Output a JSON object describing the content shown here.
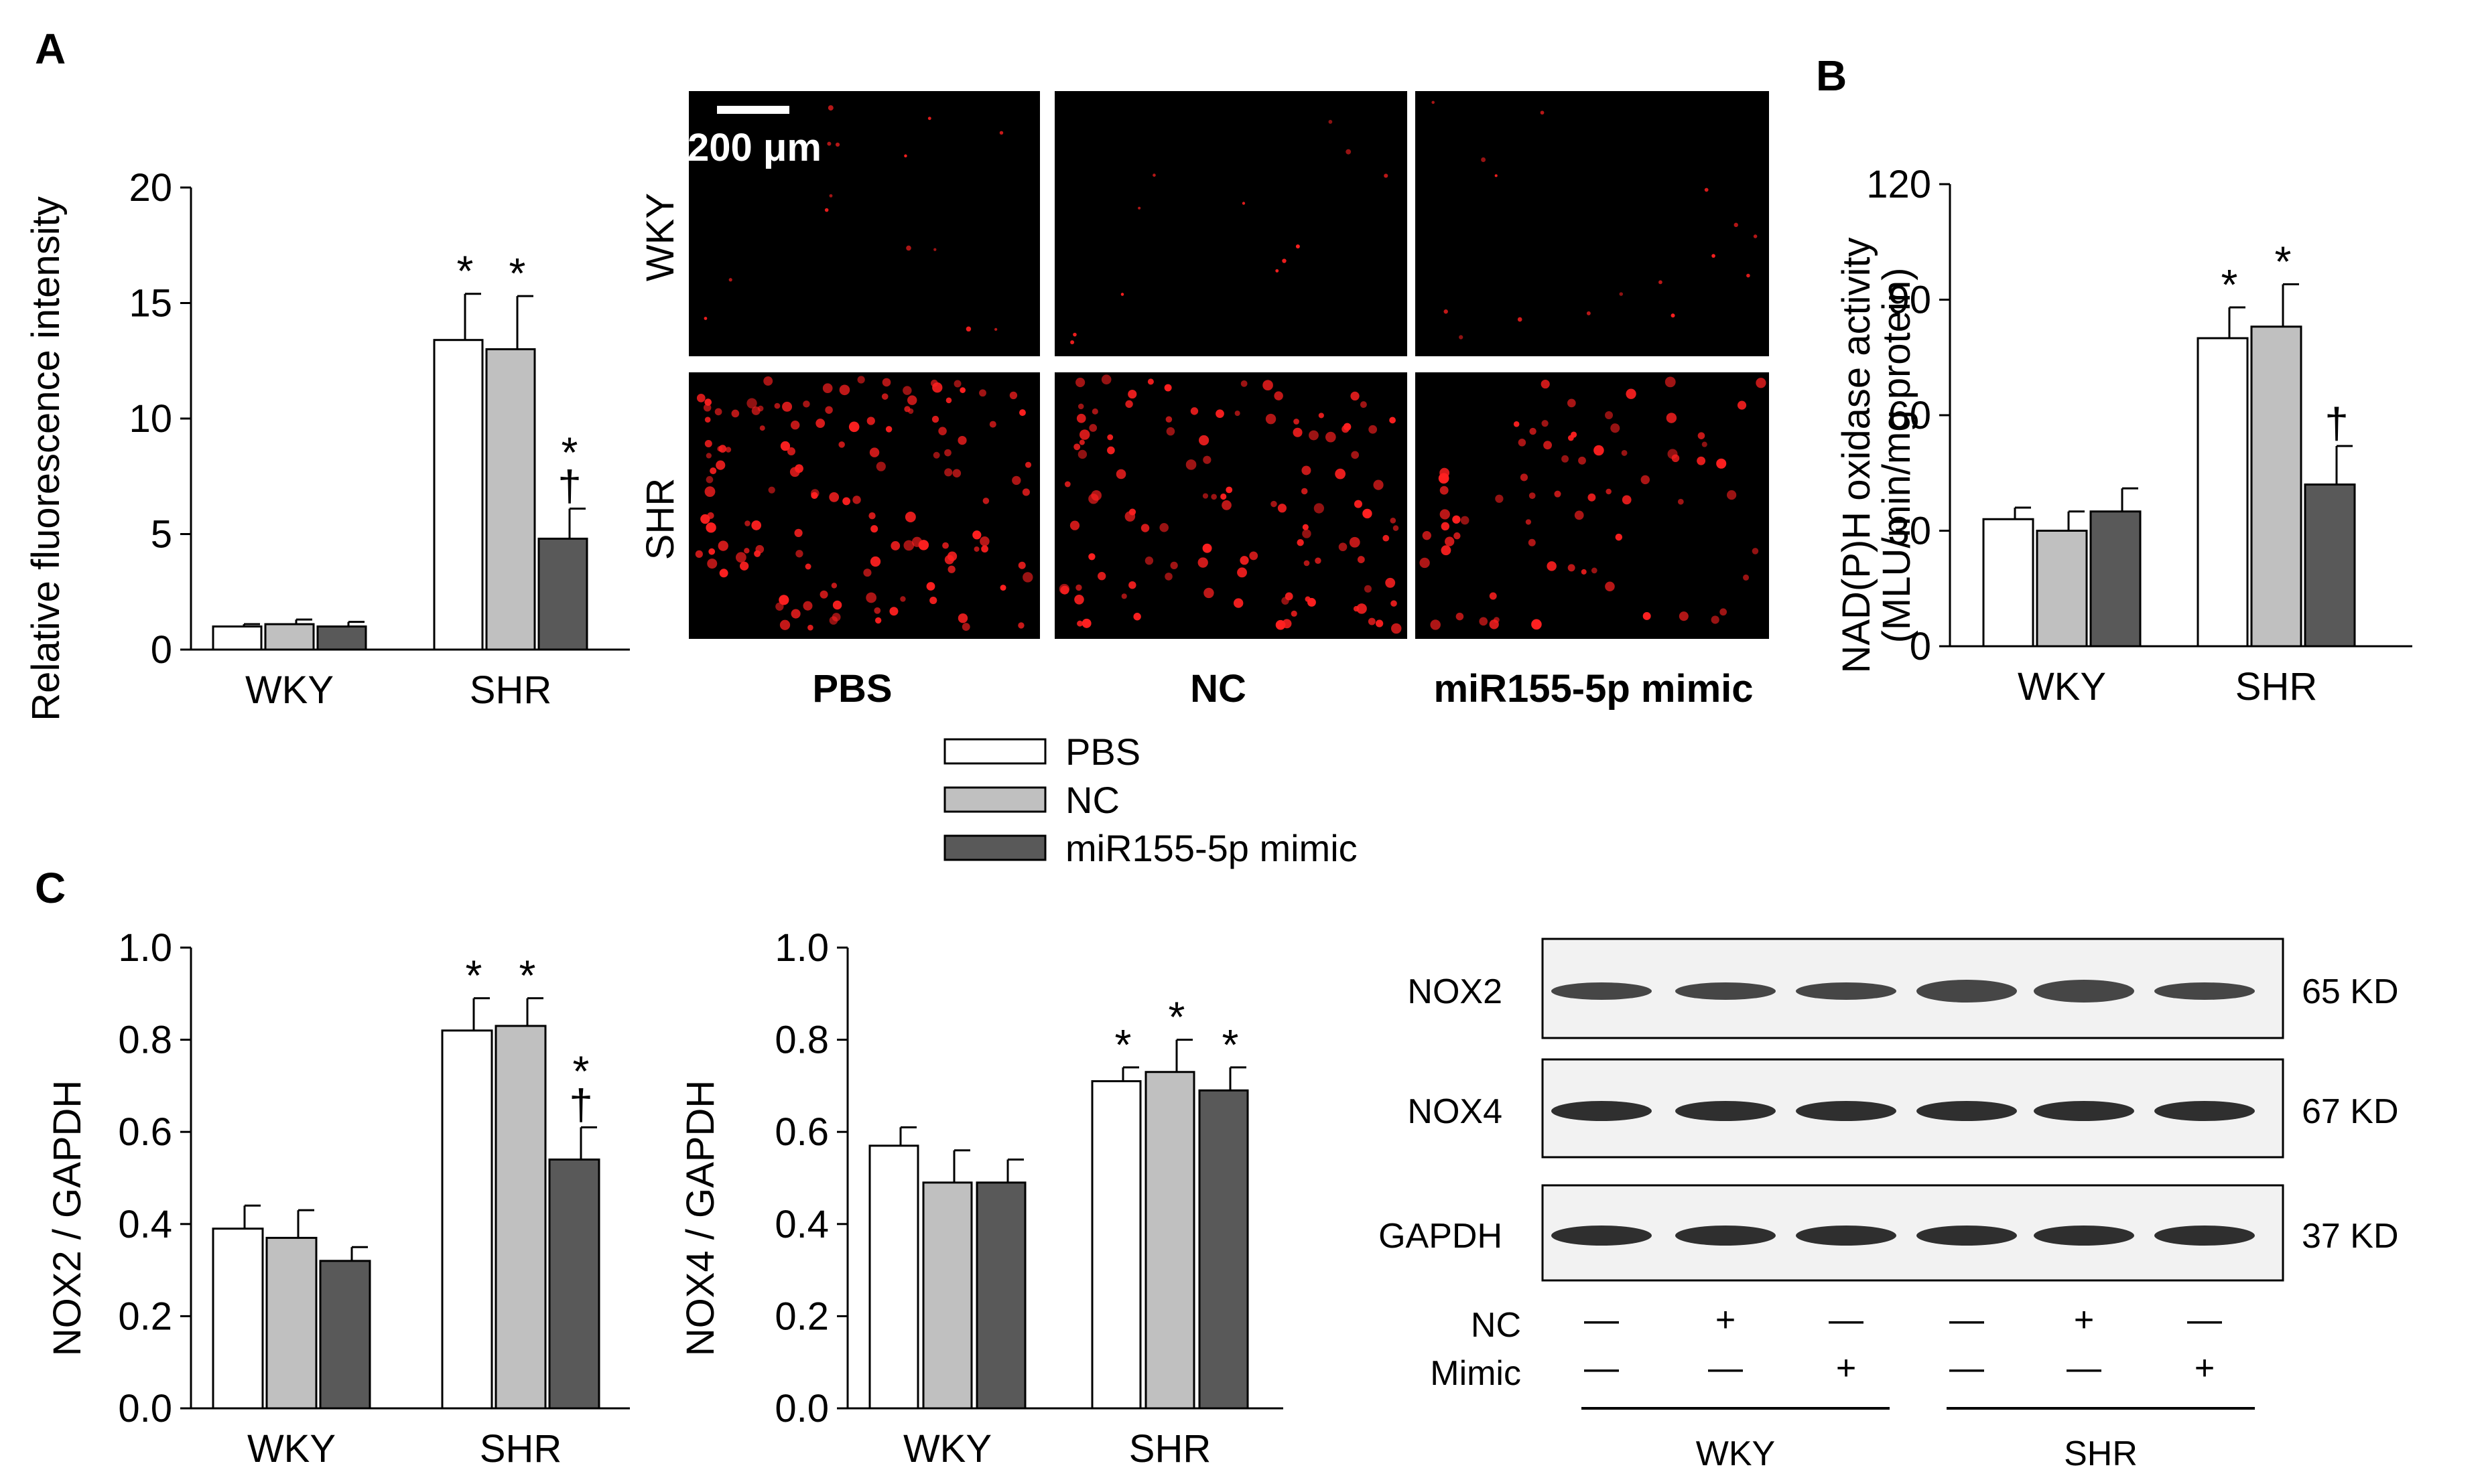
{
  "colors": {
    "PBS": "#ffffff",
    "NC": "#c0c0c0",
    "miR155-5p mimic": "#595959",
    "fluorescence": "#ff2020",
    "micro_bg": "#000000"
  },
  "legend": [
    "PBS",
    "NC",
    "miR155-5p mimic"
  ],
  "panels": {
    "A": "A",
    "B": "B",
    "C": "C"
  },
  "chart_data": [
    {
      "id": "A",
      "type": "bar",
      "categories": [
        "WKY",
        "SHR"
      ],
      "ylabel": "Relative fluorescence intensity",
      "ylim": [
        0,
        20
      ],
      "yticks": [
        "0",
        "5",
        "10",
        "15",
        "20"
      ],
      "series": [
        {
          "name": "PBS",
          "values": [
            1.0,
            13.4
          ],
          "errors": [
            0.1,
            2.0
          ]
        },
        {
          "name": "NC",
          "values": [
            1.1,
            13.0
          ],
          "errors": [
            0.2,
            2.3
          ]
        },
        {
          "name": "miR155-5p mimic",
          "values": [
            1.0,
            4.8
          ],
          "errors": [
            0.2,
            1.3
          ]
        }
      ],
      "annotations": [
        {
          "category": "SHR",
          "series": "PBS",
          "text": "*"
        },
        {
          "category": "SHR",
          "series": "NC",
          "text": "*"
        },
        {
          "category": "SHR",
          "series": "miR155-5p mimic",
          "text": "*\n†"
        }
      ]
    },
    {
      "id": "B",
      "type": "bar",
      "categories": [
        "WKY",
        "SHR"
      ],
      "ylabel": "NAD(P)H oxidase activity",
      "ylabel2": "(MLU/min/mg protein)",
      "ylim": [
        0,
        120
      ],
      "yticks": [
        "0",
        "30",
        "60",
        "90",
        "120"
      ],
      "series": [
        {
          "name": "PBS",
          "values": [
            33,
            80
          ],
          "errors": [
            3,
            8
          ]
        },
        {
          "name": "NC",
          "values": [
            30,
            83
          ],
          "errors": [
            5,
            11
          ]
        },
        {
          "name": "miR155-5p mimic",
          "values": [
            35,
            42
          ],
          "errors": [
            6,
            10
          ]
        }
      ],
      "annotations": [
        {
          "category": "SHR",
          "series": "PBS",
          "text": "*"
        },
        {
          "category": "SHR",
          "series": "NC",
          "text": "*"
        },
        {
          "category": "SHR",
          "series": "miR155-5p mimic",
          "text": "†"
        }
      ]
    },
    {
      "id": "C1",
      "type": "bar",
      "categories": [
        "WKY",
        "SHR"
      ],
      "ylabel": "NOX2 / GAPDH",
      "ylim": [
        0,
        1.0
      ],
      "yticks": [
        "0.0",
        "0.2",
        "0.4",
        "0.6",
        "0.8",
        "1.0"
      ],
      "series": [
        {
          "name": "PBS",
          "values": [
            0.39,
            0.82
          ],
          "errors": [
            0.05,
            0.07
          ]
        },
        {
          "name": "NC",
          "values": [
            0.37,
            0.83
          ],
          "errors": [
            0.06,
            0.06
          ]
        },
        {
          "name": "miR155-5p mimic",
          "values": [
            0.32,
            0.54
          ],
          "errors": [
            0.03,
            0.07
          ]
        }
      ],
      "annotations": [
        {
          "category": "SHR",
          "series": "PBS",
          "text": "*"
        },
        {
          "category": "SHR",
          "series": "NC",
          "text": "*"
        },
        {
          "category": "SHR",
          "series": "miR155-5p mimic",
          "text": "*\n†"
        }
      ]
    },
    {
      "id": "C2",
      "type": "bar",
      "categories": [
        "WKY",
        "SHR"
      ],
      "ylabel": "NOX4 / GAPDH",
      "ylim": [
        0,
        1.0
      ],
      "yticks": [
        "0.0",
        "0.2",
        "0.4",
        "0.6",
        "0.8",
        "1.0"
      ],
      "series": [
        {
          "name": "PBS",
          "values": [
            0.57,
            0.71
          ],
          "errors": [
            0.04,
            0.03
          ]
        },
        {
          "name": "NC",
          "values": [
            0.49,
            0.73
          ],
          "errors": [
            0.07,
            0.07
          ]
        },
        {
          "name": "miR155-5p mimic",
          "values": [
            0.49,
            0.69
          ],
          "errors": [
            0.05,
            0.05
          ]
        }
      ],
      "annotations": [
        {
          "category": "SHR",
          "series": "PBS",
          "text": "*"
        },
        {
          "category": "SHR",
          "series": "NC",
          "text": "*"
        },
        {
          "category": "SHR",
          "series": "miR155-5p mimic",
          "text": "*"
        }
      ]
    }
  ],
  "micrographs": {
    "scale_bar": "200 μm",
    "rows": [
      "WKY",
      "SHR"
    ],
    "columns": [
      "PBS",
      "NC",
      "miR155-5p mimic"
    ]
  },
  "blot": {
    "bands": [
      {
        "name": "NOX2",
        "size": "65 KD"
      },
      {
        "name": "NOX4",
        "size": "67 KD"
      },
      {
        "name": "GAPDH",
        "size": "37 KD"
      }
    ],
    "row_labels": [
      "NC",
      "Mimic"
    ],
    "lanes": [
      {
        "NC": "—",
        "Mimic": "—"
      },
      {
        "NC": "+",
        "Mimic": "—"
      },
      {
        "NC": "—",
        "Mimic": "+"
      },
      {
        "NC": "—",
        "Mimic": "—"
      },
      {
        "NC": "+",
        "Mimic": "—"
      },
      {
        "NC": "—",
        "Mimic": "+"
      }
    ],
    "groups": [
      "WKY",
      "SHR"
    ]
  }
}
